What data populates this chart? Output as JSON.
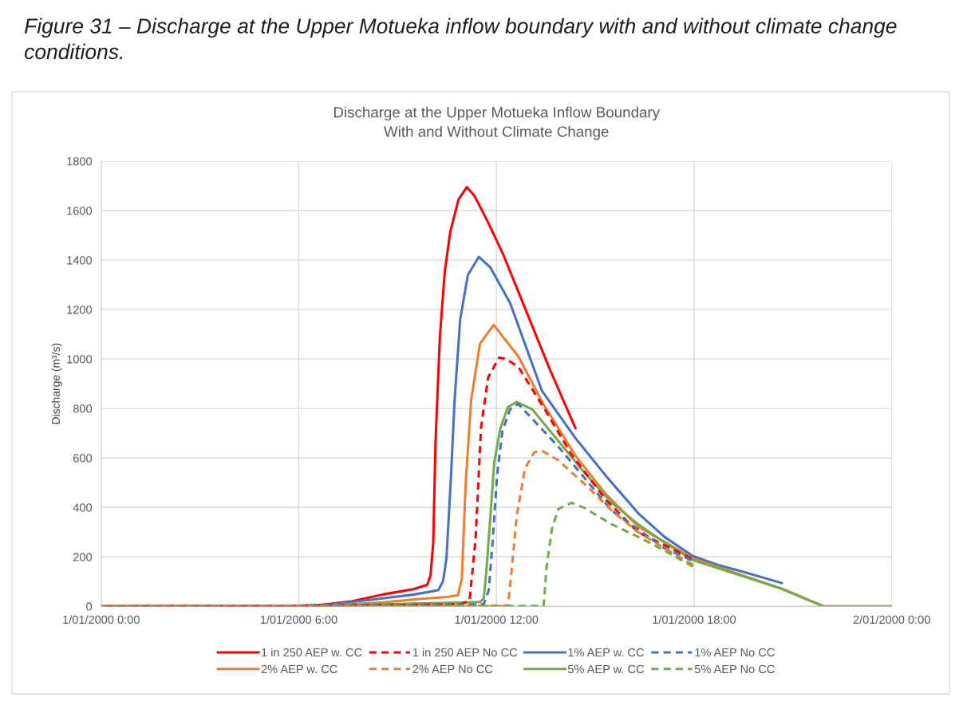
{
  "chart_data": {
    "type": "line",
    "title": "Discharge at the Upper Motueka Inflow Boundary\nWith and Without Climate Change",
    "ylabel": "Discharge (m³/s)",
    "annotations": [
      "Figure 31 – Discharge at the Upper Motueka inflow boundary with and without climate change conditions."
    ],
    "xlim": [
      "2000-01-01T00:00",
      "2000-01-02T00:00"
    ],
    "xticks": [
      {
        "value": "2000-01-01T00:00",
        "label": "1/01/2000 0:00"
      },
      {
        "value": "2000-01-01T06:00",
        "label": "1/01/2000 6:00"
      },
      {
        "value": "2000-01-01T12:00",
        "label": "1/01/2000 12:00"
      },
      {
        "value": "2000-01-01T18:00",
        "label": "1/01/2000 18:00"
      },
      {
        "value": "2000-01-02T00:00",
        "label": "2/01/2000 0:00"
      }
    ],
    "ylim": [
      0,
      1800
    ],
    "yticks": [
      0,
      200,
      400,
      600,
      800,
      1000,
      1200,
      1400,
      1600,
      1800
    ],
    "grid": true,
    "legend": "bottom",
    "marker": "none",
    "series": [
      {
        "name": "1 in 250 AEP w. CC",
        "color": "#ff0000",
        "line_style": "solid",
        "x": [
          "2000-01-01T00:00",
          "2000-01-01T06:00",
          "2000-01-01T06:36",
          "2000-01-01T07:36",
          "2000-01-01T08:33",
          "2000-01-01T09:30",
          "2000-01-01T09:54",
          "2000-01-01T10:00",
          "2000-01-01T10:05",
          "2000-01-01T10:09",
          "2000-01-01T10:17",
          "2000-01-01T10:26",
          "2000-01-01T10:36",
          "2000-01-01T10:51",
          "2000-01-01T11:06",
          "2000-01-01T11:20",
          "2000-01-01T11:42",
          "2000-01-01T12:11",
          "2000-01-01T12:54",
          "2000-01-01T13:36",
          "2000-01-01T14:24"
        ],
        "values": [
          0,
          2,
          5,
          20,
          48,
          70,
          87,
          125,
          260,
          660,
          1090,
          1355,
          1515,
          1645,
          1695,
          1660,
          1565,
          1430,
          1195,
          965,
          720
        ]
      },
      {
        "name": "1 in 250 AEP No CC",
        "color": "#ff0000",
        "line_style": "dashed",
        "x": [
          "2000-01-01T00:00",
          "2000-01-01T06:00",
          "2000-01-01T08:33",
          "2000-01-01T10:54",
          "2000-01-01T11:11",
          "2000-01-01T11:22",
          "2000-01-01T11:32",
          "2000-01-01T11:45",
          "2000-01-01T12:05",
          "2000-01-01T12:18",
          "2000-01-01T12:40",
          "2000-01-01T13:28",
          "2000-01-01T14:17",
          "2000-01-01T15:20",
          "2000-01-01T16:18",
          "2000-01-01T17:55"
        ],
        "values": [
          0,
          2,
          6,
          8,
          22,
          271,
          723,
          926,
          1006,
          1000,
          968,
          797,
          613,
          429,
          300,
          194
        ]
      },
      {
        "name": "1% AEP w. CC",
        "color": "#4472c4",
        "line_style": "solid",
        "x": [
          "2000-01-01T00:00",
          "2000-01-01T06:00",
          "2000-01-01T07:00",
          "2000-01-01T08:33",
          "2000-01-01T09:30",
          "2000-01-01T10:14",
          "2000-01-01T10:23",
          "2000-01-01T10:29",
          "2000-01-01T10:37",
          "2000-01-01T10:44",
          "2000-01-01T10:54",
          "2000-01-01T11:08",
          "2000-01-01T11:28",
          "2000-01-01T11:49",
          "2000-01-01T12:25",
          "2000-01-01T13:23",
          "2000-01-01T14:25",
          "2000-01-01T15:20",
          "2000-01-01T16:18",
          "2000-01-01T17:06",
          "2000-01-01T17:58",
          "2000-01-01T18:43",
          "2000-01-01T19:31",
          "2000-01-01T20:40"
        ],
        "values": [
          0,
          2,
          8,
          32,
          48,
          65,
          103,
          195,
          515,
          840,
          1160,
          1340,
          1413,
          1370,
          1226,
          871,
          677,
          526,
          377,
          281,
          203,
          168,
          139,
          94
        ]
      },
      {
        "name": "1% AEP No CC",
        "color": "#4472c4",
        "line_style": "dashed",
        "x": [
          "2000-01-01T00:00",
          "2000-01-01T06:00",
          "2000-01-01T08:33",
          "2000-01-01T11:30",
          "2000-01-01T11:37",
          "2000-01-01T11:46",
          "2000-01-01T11:53",
          "2000-01-01T12:01",
          "2000-01-01T12:11",
          "2000-01-01T12:25",
          "2000-01-01T12:40",
          "2000-01-01T13:53",
          "2000-01-01T15:30",
          "2000-01-01T17:06",
          "2000-01-01T17:55"
        ],
        "values": [
          0,
          0,
          5,
          8,
          10,
          65,
          258,
          526,
          710,
          797,
          818,
          645,
          387,
          235,
          187
        ]
      },
      {
        "name": "2% AEP w. CC",
        "color": "#ed7d31",
        "line_style": "solid",
        "x": [
          "2000-01-01T00:00",
          "2000-01-01T06:00",
          "2000-01-01T07:00",
          "2000-01-01T08:33",
          "2000-01-01T09:30",
          "2000-01-01T10:30",
          "2000-01-01T10:50",
          "2000-01-01T10:57",
          "2000-01-01T11:04",
          "2000-01-01T11:14",
          "2000-01-01T11:30",
          "2000-01-01T11:55",
          "2000-01-01T12:40",
          "2000-01-01T13:26",
          "2000-01-01T14:25",
          "2000-01-01T15:20",
          "2000-01-01T16:18",
          "2000-01-01T17:58",
          "2000-01-01T20:40",
          "2000-01-01T21:56",
          "2000-01-02T00:00"
        ],
        "values": [
          0,
          1,
          4,
          16,
          28,
          38,
          45,
          113,
          497,
          835,
          1061,
          1138,
          1010,
          816,
          606,
          452,
          323,
          194,
          71,
          0,
          0
        ]
      },
      {
        "name": "2% AEP No CC",
        "color": "#ed7d31",
        "line_style": "dashed",
        "x": [
          "2000-01-01T00:00",
          "2000-01-01T06:00",
          "2000-01-01T12:21",
          "2000-01-01T12:28",
          "2000-01-01T12:37",
          "2000-01-01T12:52",
          "2000-01-01T13:09",
          "2000-01-01T13:23",
          "2000-01-01T13:53",
          "2000-01-01T14:41",
          "2000-01-01T15:30",
          "2000-01-01T16:18",
          "2000-01-01T17:06",
          "2000-01-01T17:58"
        ],
        "values": [
          0,
          0,
          3,
          152,
          365,
          558,
          623,
          629,
          590,
          494,
          387,
          300,
          235,
          168
        ]
      },
      {
        "name": "5% AEP w. CC",
        "color": "#70ad47",
        "line_style": "solid",
        "x": [
          "2000-01-01T00:00",
          "2000-01-01T06:00",
          "2000-01-01T08:33",
          "2000-01-01T10:00",
          "2000-01-01T11:30",
          "2000-01-01T11:37",
          "2000-01-01T11:42",
          "2000-01-01T11:49",
          "2000-01-01T11:56",
          "2000-01-01T12:07",
          "2000-01-01T12:21",
          "2000-01-01T12:37",
          "2000-01-01T13:05",
          "2000-01-01T13:53",
          "2000-01-01T14:41",
          "2000-01-01T15:30",
          "2000-01-01T16:18",
          "2000-01-01T17:06",
          "2000-01-01T17:58",
          "2000-01-01T20:40",
          "2000-01-01T21:56",
          "2000-01-02T00:00"
        ],
        "values": [
          0,
          0,
          8,
          13,
          18,
          32,
          152,
          365,
          581,
          719,
          806,
          826,
          797,
          668,
          539,
          419,
          332,
          258,
          187,
          71,
          0,
          0
        ]
      },
      {
        "name": "5% AEP No CC",
        "color": "#70ad47",
        "line_style": "dashed",
        "x": [
          "2000-01-01T00:00",
          "2000-01-01T06:00",
          "2000-01-01T13:26",
          "2000-01-01T13:31",
          "2000-01-01T13:41",
          "2000-01-01T13:53",
          "2000-01-01T14:17",
          "2000-01-01T14:41",
          "2000-01-01T15:30",
          "2000-01-01T16:18",
          "2000-01-01T17:06",
          "2000-01-01T17:58"
        ],
        "values": [
          0,
          0,
          2,
          152,
          313,
          394,
          419,
          397,
          332,
          281,
          226,
          161
        ]
      }
    ]
  }
}
